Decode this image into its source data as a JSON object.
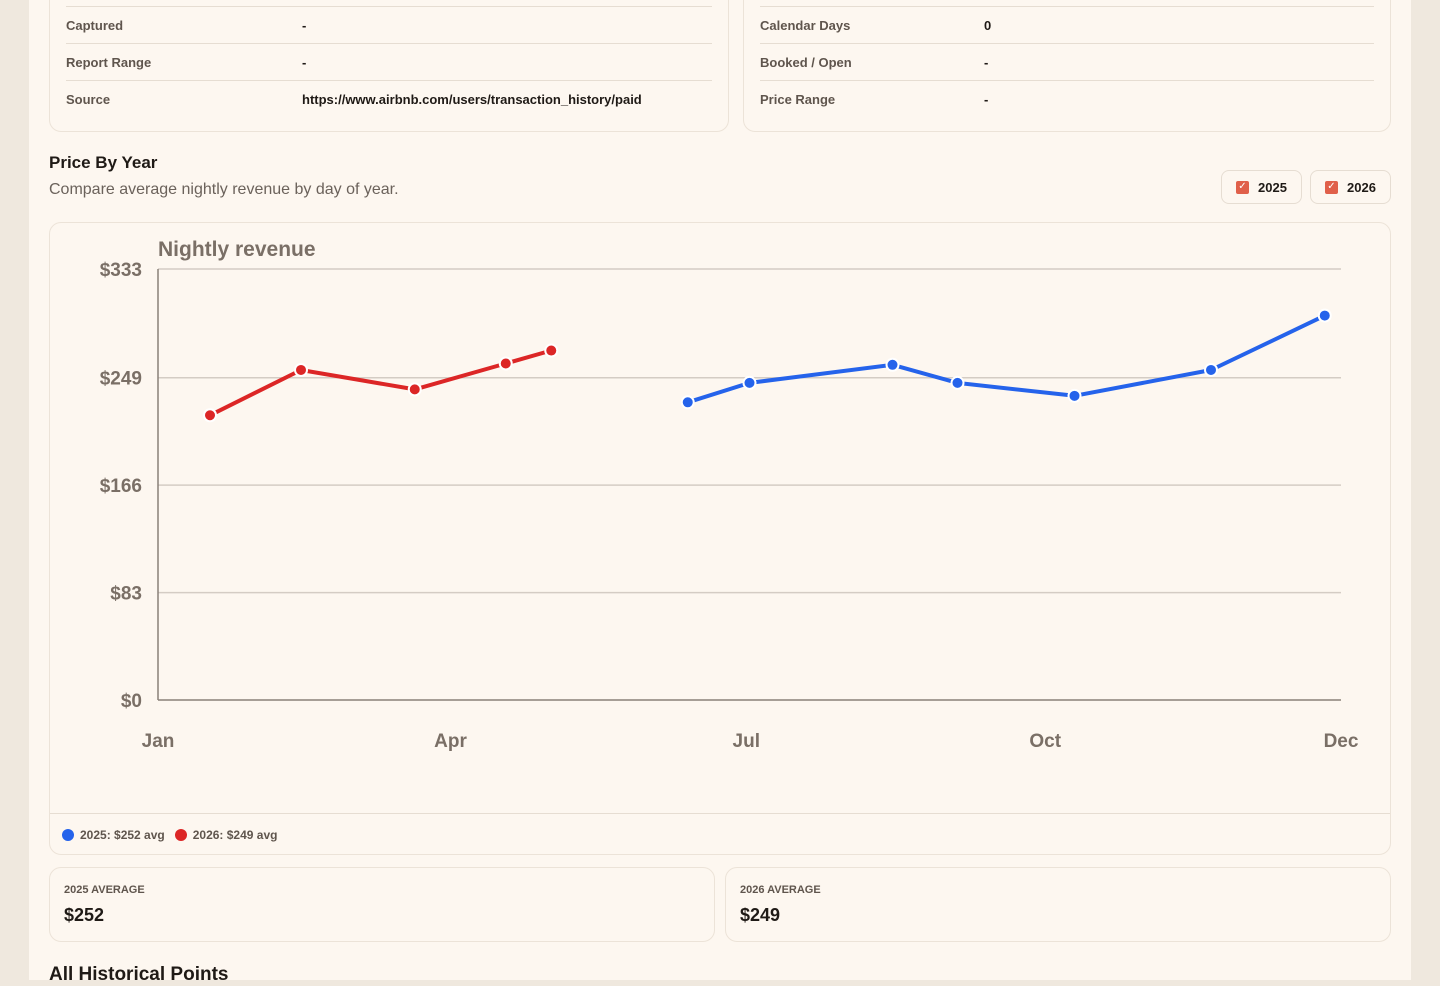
{
  "info_left": {
    "rows": [
      {
        "label": "Captured",
        "value": "-"
      },
      {
        "label": "Report Range",
        "value": "-"
      },
      {
        "label": "Source",
        "value": "https://www.airbnb.com/users/transaction_history/paid"
      }
    ]
  },
  "info_right": {
    "rows": [
      {
        "label": "Calendar Days",
        "value": "0"
      },
      {
        "label": "Booked / Open",
        "value": "-"
      },
      {
        "label": "Price Range",
        "value": "-"
      }
    ]
  },
  "section": {
    "title": "Price By Year",
    "subtitle": "Compare average nightly revenue by day of year."
  },
  "toggles": [
    {
      "label": "2025",
      "checked": true
    },
    {
      "label": "2026",
      "checked": true
    }
  ],
  "chart_data": {
    "type": "line",
    "title": "Nightly revenue",
    "ylim": [
      0,
      333
    ],
    "y_ticks": [
      "$333",
      "$249",
      "$166",
      "$83",
      "$0"
    ],
    "y_tick_values": [
      333,
      249,
      166,
      83,
      0
    ],
    "x_ticks": [
      "Jan",
      "Apr",
      "Jul",
      "Oct",
      "Dec"
    ],
    "x_tick_days": [
      1,
      91,
      182,
      274,
      365
    ],
    "grid": true,
    "series": [
      {
        "name": "2025",
        "color": "#2563eb",
        "points": [
          {
            "day": 164,
            "value": 230
          },
          {
            "day": 183,
            "value": 245
          },
          {
            "day": 227,
            "value": 259
          },
          {
            "day": 247,
            "value": 245
          },
          {
            "day": 283,
            "value": 235
          },
          {
            "day": 325,
            "value": 255
          },
          {
            "day": 360,
            "value": 297
          }
        ]
      },
      {
        "name": "2026",
        "color": "#dc2626",
        "points": [
          {
            "day": 17,
            "value": 220
          },
          {
            "day": 45,
            "value": 255
          },
          {
            "day": 80,
            "value": 240
          },
          {
            "day": 108,
            "value": 260
          },
          {
            "day": 122,
            "value": 270
          }
        ]
      }
    ],
    "legend": [
      "2025: $252 avg",
      "2026: $249 avg"
    ],
    "legend_position": "bottom-left"
  },
  "averages": [
    {
      "label": "2025 AVERAGE",
      "value": "$252"
    },
    {
      "label": "2026 AVERAGE",
      "value": "$249"
    }
  ],
  "next_section": {
    "title": "All Historical Points"
  }
}
